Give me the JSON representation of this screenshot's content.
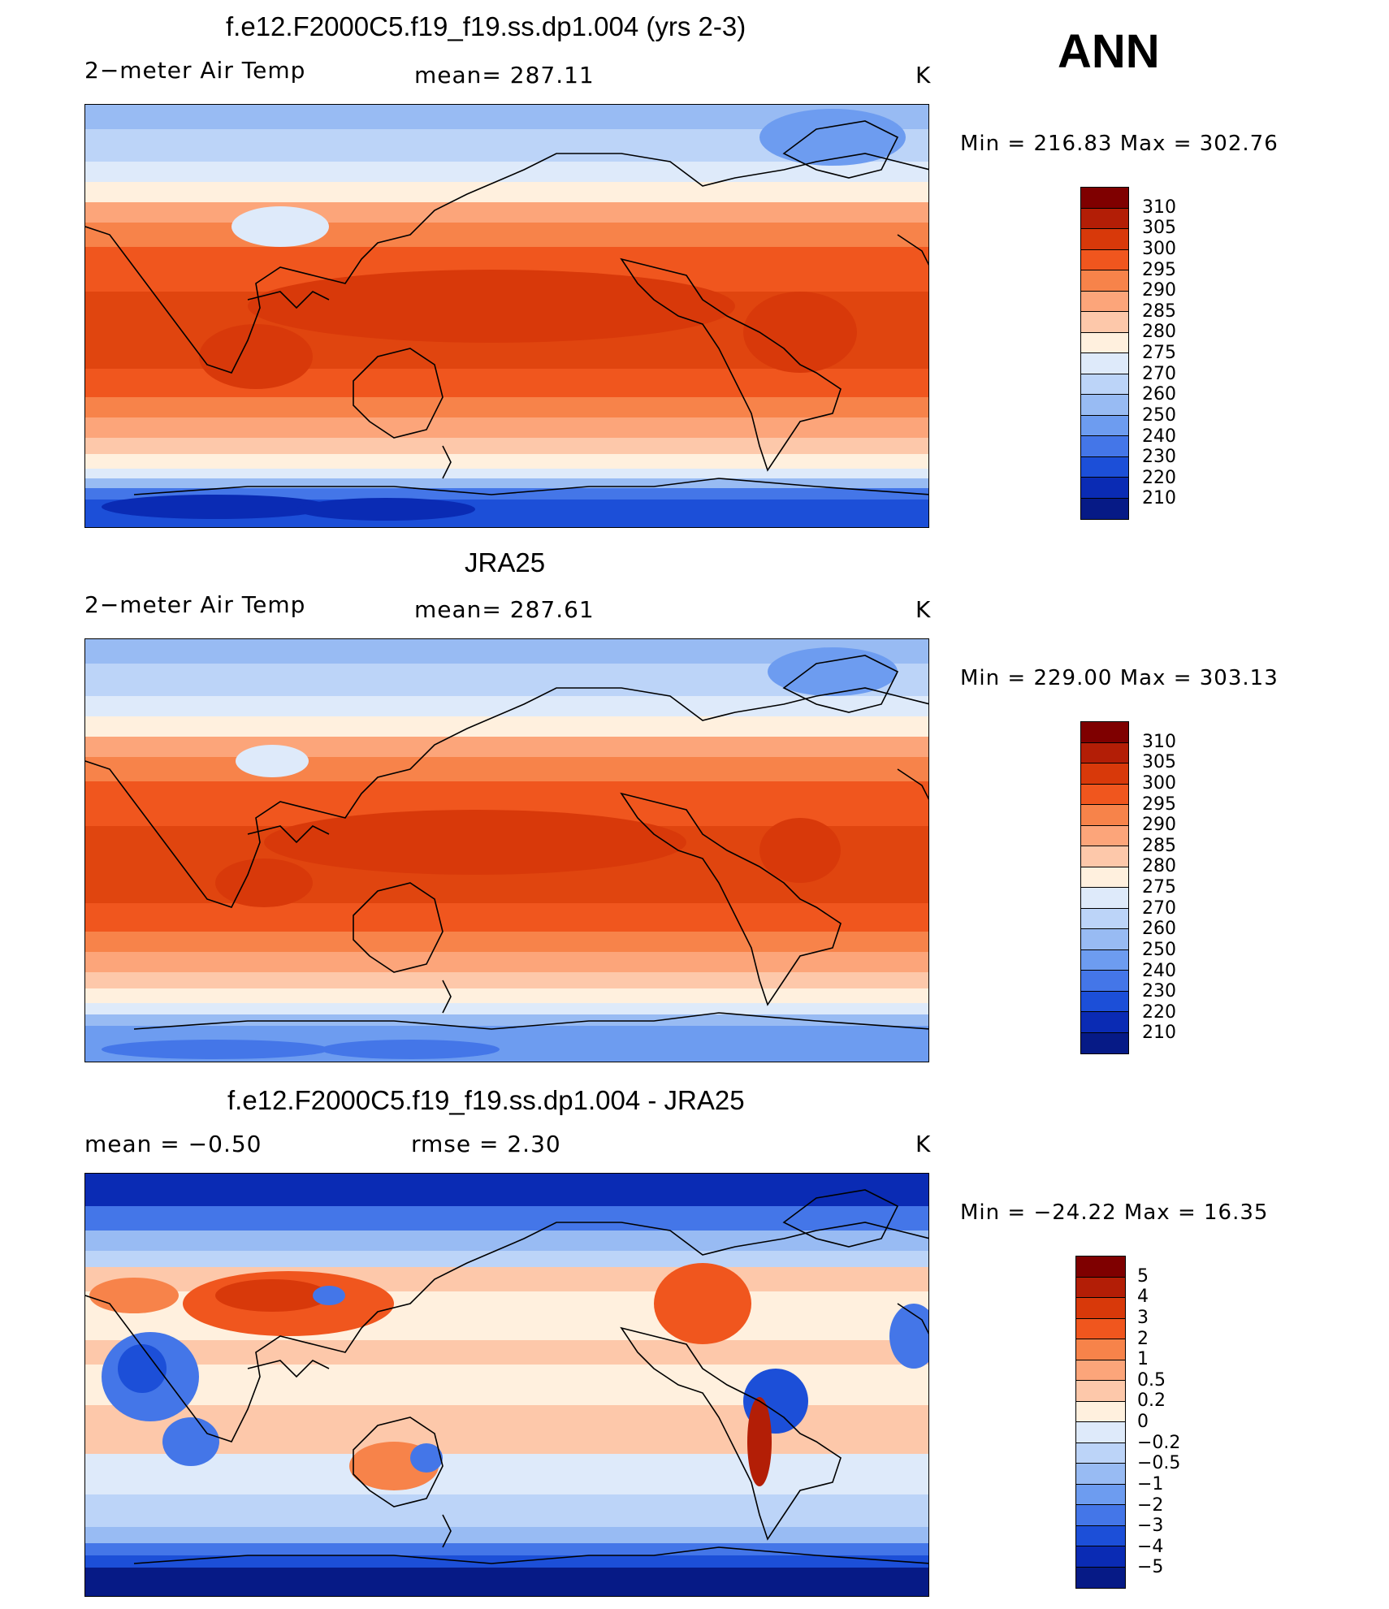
{
  "season": "ANN",
  "panels": [
    {
      "title": "f.e12.F2000C5.f19_f19.ss.dp1.004 (yrs 2-3)",
      "left_label": "2−meter Air Temp",
      "mid_label": "mean=  287.11",
      "units": "K",
      "minmax": "Min  =  216.83  Max  =  302.76",
      "colorbar": {
        "labels": [
          "310",
          "305",
          "300",
          "295",
          "290",
          "285",
          "280",
          "275",
          "270",
          "260",
          "250",
          "240",
          "230",
          "220",
          "210"
        ],
        "colors": [
          "#7f0000",
          "#b31e06",
          "#d8390a",
          "#f0561e",
          "#f7834a",
          "#fca57a",
          "#fdc8aa",
          "#fff0de",
          "#deeafa",
          "#bcd4f8",
          "#98bbf3",
          "#6d9cf0",
          "#4476e8",
          "#1c4fd8",
          "#0a2bb4",
          "#061a86"
        ]
      }
    },
    {
      "title": "JRA25",
      "left_label": "2−meter Air Temp",
      "mid_label": "mean=  287.61",
      "units": "K",
      "minmax": "Min  =  229.00  Max  =  303.13",
      "colorbar": {
        "labels": [
          "310",
          "305",
          "300",
          "295",
          "290",
          "285",
          "280",
          "275",
          "270",
          "260",
          "250",
          "240",
          "230",
          "220",
          "210"
        ],
        "colors": [
          "#7f0000",
          "#b31e06",
          "#d8390a",
          "#f0561e",
          "#f7834a",
          "#fca57a",
          "#fdc8aa",
          "#fff0de",
          "#deeafa",
          "#bcd4f8",
          "#98bbf3",
          "#6d9cf0",
          "#4476e8",
          "#1c4fd8",
          "#0a2bb4",
          "#061a86"
        ]
      }
    },
    {
      "title": "f.e12.F2000C5.f19_f19.ss.dp1.004 - JRA25",
      "left_label": "mean =     −0.50",
      "mid_label": "rmse =      2.30",
      "units": "K",
      "minmax": "Min  =  −24.22  Max  =    16.35",
      "colorbar": {
        "labels": [
          "5",
          "4",
          "3",
          "2",
          "1",
          "0.5",
          "0.2",
          "0",
          "−0.2",
          "−0.5",
          "−1",
          "−2",
          "−3",
          "−4",
          "−5"
        ],
        "colors": [
          "#7f0000",
          "#b31e06",
          "#d8390a",
          "#f0561e",
          "#f7834a",
          "#fca57a",
          "#fdc8aa",
          "#fff0de",
          "#deeafa",
          "#bcd4f8",
          "#98bbf3",
          "#6d9cf0",
          "#4476e8",
          "#1c4fd8",
          "#0a2bb4",
          "#061a86"
        ]
      }
    }
  ]
}
